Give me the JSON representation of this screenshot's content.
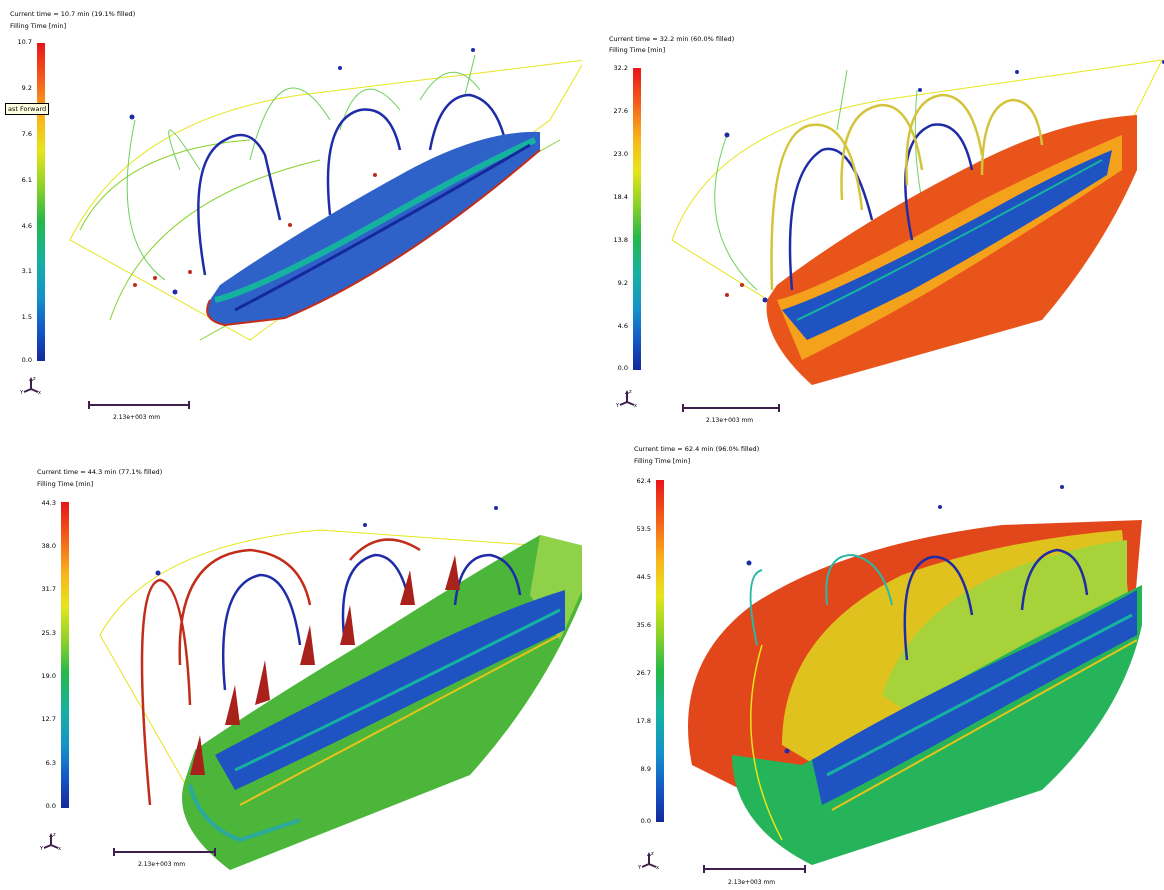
{
  "panels": [
    {
      "status": "Current time = 10.7 min (19.1% filled)",
      "legend_title": "Filling Time [min]",
      "ticks": [
        "10.7",
        "9.2",
        "7.6",
        "6.1",
        "4.6",
        "3.1",
        "1.5",
        "0.0"
      ],
      "scale": "2.13e+003 mm"
    },
    {
      "status": "Current time = 32.2 min (60.0% filled)",
      "legend_title": "Filling Time [min]",
      "ticks": [
        "32.2",
        "27.6",
        "23.0",
        "18.4",
        "13.8",
        "9.2",
        "4.6",
        "0.0"
      ],
      "scale": "2.13e+003 mm"
    },
    {
      "status": "Current time = 44.3 min (77.1% filled)",
      "legend_title": "Filling Time [min]",
      "ticks": [
        "44.3",
        "38.0",
        "31.7",
        "25.3",
        "19.0",
        "12.7",
        "6.3",
        "0.0"
      ],
      "scale": "2.13e+003 mm"
    },
    {
      "status": "Current time = 62.4 min (96.0% filled)",
      "legend_title": "Filling Time [min]",
      "ticks": [
        "62.4",
        "53.5",
        "44.5",
        "35.6",
        "26.7",
        "17.8",
        "8.9",
        "0.0"
      ],
      "scale": "2.13e+003 mm"
    }
  ],
  "tooltip": "ast Forward",
  "axes": {
    "z": "z",
    "y": "Y",
    "x": "x"
  }
}
